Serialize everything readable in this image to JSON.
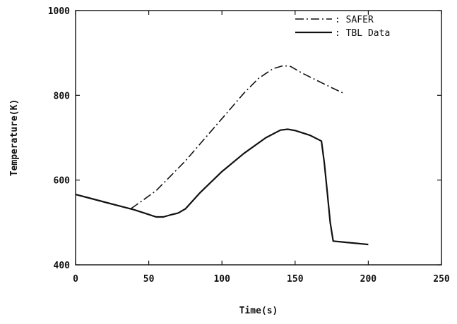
{
  "chart_data": {
    "type": "line",
    "title": "",
    "xlabel": "Time(s)",
    "ylabel": "Temperature(K)",
    "xlim": [
      0,
      250
    ],
    "ylim": [
      400,
      1000
    ],
    "xticks": [
      "0",
      "50",
      "100",
      "150",
      "200",
      "250"
    ],
    "xtick_values": [
      0,
      50,
      100,
      150,
      200,
      250
    ],
    "yticks": [
      "400",
      "600",
      "800",
      "1000"
    ],
    "ytick_values": [
      400,
      600,
      800,
      1000
    ],
    "grid": false,
    "legend_position": "top-right",
    "series": [
      {
        "name": ": SAFER",
        "style": "dash-dot",
        "color": "#111111",
        "x": [
          38,
          45,
          55,
          65,
          75,
          85,
          95,
          105,
          115,
          125,
          135,
          142,
          147,
          155,
          165,
          175,
          183
        ],
        "y": [
          533,
          550,
          575,
          610,
          645,
          685,
          725,
          765,
          805,
          840,
          863,
          870,
          868,
          852,
          835,
          818,
          805
        ]
      },
      {
        "name": ": TBL Data",
        "style": "solid",
        "color": "#111111",
        "x": [
          0,
          10,
          20,
          30,
          40,
          48,
          55,
          60,
          65,
          70,
          75,
          85,
          100,
          115,
          130,
          140,
          145,
          150,
          160,
          168,
          170,
          172,
          174,
          176,
          185,
          200
        ],
        "y": [
          566,
          557,
          548,
          539,
          530,
          521,
          513,
          513,
          518,
          522,
          532,
          570,
          620,
          663,
          700,
          718,
          720,
          717,
          706,
          692,
          640,
          570,
          500,
          456,
          453,
          448
        ]
      }
    ]
  }
}
